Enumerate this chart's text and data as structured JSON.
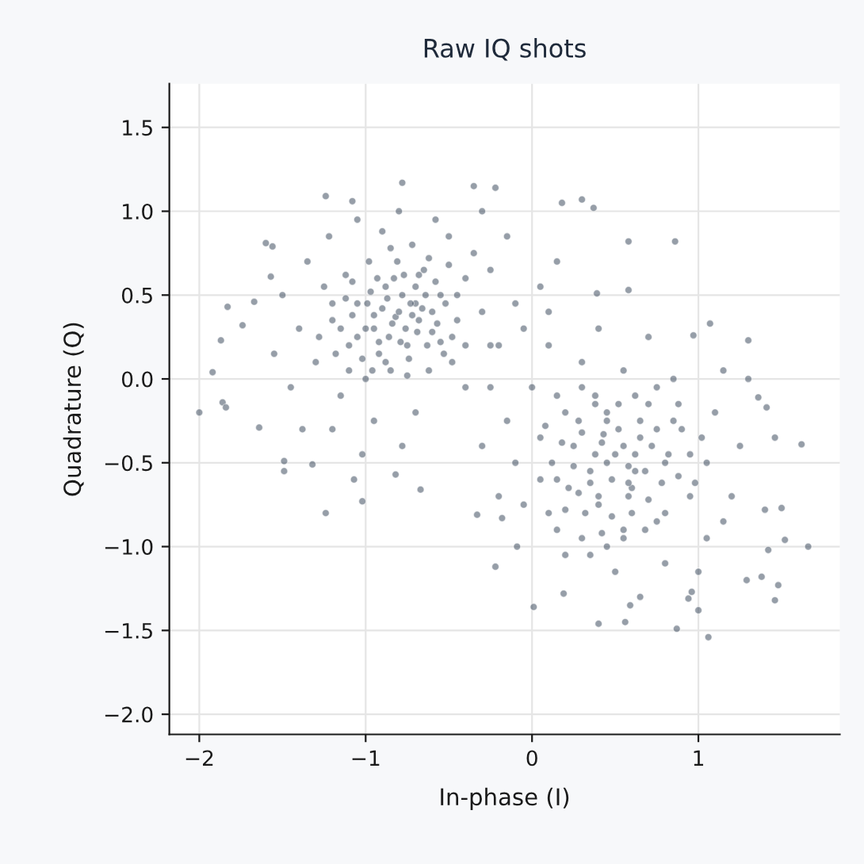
{
  "chart_data": {
    "type": "scatter",
    "title": "Raw IQ shots",
    "xlabel": "In-phase (I)",
    "ylabel": "Quadrature (Q)",
    "xlim": [
      -2.18,
      1.85
    ],
    "ylim": [
      -2.12,
      1.76
    ],
    "xticks": [
      {
        "value": -2,
        "label": "−2"
      },
      {
        "value": -1,
        "label": "−1"
      },
      {
        "value": 0,
        "label": "0"
      },
      {
        "value": 1,
        "label": "1"
      }
    ],
    "yticks": [
      {
        "value": -2.0,
        "label": "−2.0"
      },
      {
        "value": -1.5,
        "label": "−1.5"
      },
      {
        "value": -1.0,
        "label": "−1.0"
      },
      {
        "value": -0.5,
        "label": "−0.5"
      },
      {
        "value": 0.0,
        "label": "0.0"
      },
      {
        "value": 0.5,
        "label": "0.5"
      },
      {
        "value": 1.0,
        "label": "1.0"
      },
      {
        "value": 1.5,
        "label": "1.5"
      }
    ],
    "grid": true,
    "marker": "circle",
    "series": [
      {
        "color": "#2e3d52",
        "x": [
          -2.0,
          -1.92,
          -1.87,
          -1.83,
          -1.86,
          -1.84,
          -1.74,
          -1.6,
          -1.56,
          -1.24,
          -1.08,
          -0.78,
          -0.35,
          -0.22,
          -1.24,
          -1.02,
          -1.07,
          -1.49,
          -1.49,
          -1.32,
          -0.67,
          -0.82,
          -1.67,
          -1.57,
          -1.64,
          0.18,
          0.3,
          0.37,
          0.58,
          0.86,
          1.07,
          1.3,
          1.3,
          1.62,
          1.66,
          1.46,
          1.52,
          1.48,
          1.46,
          1.06,
          0.87,
          0.59,
          0.4,
          0.56,
          0.19,
          0.01,
          -0.22,
          -0.09,
          -0.18,
          -0.33,
          1.0,
          0.94,
          0.96,
          1.29,
          1.38,
          1.42,
          1.4,
          1.5,
          1.36,
          1.41,
          0.58,
          0.97,
          0.39,
          -0.82,
          -0.95,
          -0.7,
          -0.6,
          -1.05,
          -0.88,
          -0.75,
          -1.1,
          -0.55,
          -0.65,
          -0.98,
          -1.2,
          -1.25,
          -0.45,
          -0.4,
          -0.85,
          -1.0,
          -0.62,
          -1.3,
          -1.15,
          -0.72,
          -0.9,
          -0.5,
          -0.35,
          -1.35,
          -1.4,
          -1.45,
          -1.2,
          -0.95,
          -0.7,
          -0.48,
          -0.3,
          -0.25,
          -0.58,
          -0.8,
          -1.05,
          -1.22,
          -1.5,
          -1.55,
          -1.38,
          -0.4,
          -0.2,
          -0.15,
          -0.3,
          -1.02,
          -0.78,
          -1.12,
          -0.68,
          -0.92,
          -0.55,
          -0.8,
          -0.84,
          -0.76,
          -0.9,
          -0.72,
          -0.86,
          -0.78,
          -0.95,
          -0.66,
          -0.92,
          -1.0,
          -0.7,
          -0.6,
          -1.05,
          -0.83,
          -0.97,
          -0.63,
          -0.74,
          -1.08,
          -0.88,
          -0.57,
          -1.12,
          -0.52,
          -0.68,
          -1.02,
          -0.79,
          -0.93,
          -0.64,
          -1.15,
          -0.48,
          -0.81,
          -1.08,
          -0.58,
          -0.73,
          -0.87,
          -0.99,
          -0.69,
          -0.77,
          -1.18,
          -0.53,
          -0.96,
          -0.62,
          -1.1,
          -0.45,
          -0.85,
          -1.2,
          -0.4,
          -0.75,
          -1.28,
          -0.5,
          0.5,
          0.35,
          0.65,
          0.45,
          0.6,
          0.25,
          0.8,
          0.4,
          0.7,
          0.2,
          0.15,
          0.9,
          0.95,
          0.55,
          0.3,
          0.75,
          0.05,
          0.1,
          1.05,
          1.1,
          0.85,
          0.55,
          0.3,
          0.0,
          -0.1,
          -0.15,
          -0.05,
          0.2,
          0.5,
          0.8,
          1.05,
          1.2,
          1.25,
          1.15,
          0.7,
          0.4,
          0.1,
          -0.25,
          -0.3,
          -0.2,
          0.65,
          1.0,
          0.38,
          0.62,
          0.28,
          0.85,
          0.45,
          0.15,
          1.15,
          -0.05,
          0.45,
          0.55,
          0.42,
          0.58,
          0.38,
          0.62,
          0.48,
          0.52,
          0.35,
          0.68,
          0.3,
          0.65,
          0.4,
          0.72,
          0.25,
          0.58,
          0.45,
          0.78,
          0.22,
          0.32,
          0.6,
          0.75,
          0.18,
          0.82,
          0.52,
          0.28,
          0.7,
          0.48,
          0.88,
          0.12,
          0.38,
          0.62,
          0.95,
          0.2,
          0.8,
          0.55,
          0.08,
          0.98,
          0.42,
          0.68,
          0.3,
          1.02,
          0.05,
          0.88,
          0.15,
          0.58,
          0.43,
          0.75,
          0.35,
          -0.1,
          0.05,
          0.15,
          -0.25,
          0.1
        ],
        "values": [
          -0.2,
          0.04,
          0.23,
          0.43,
          -0.14,
          -0.17,
          0.32,
          0.81,
          0.79,
          1.09,
          1.06,
          1.17,
          1.15,
          1.14,
          -0.8,
          -0.73,
          -0.6,
          -0.55,
          -0.49,
          -0.51,
          -0.66,
          -0.57,
          0.46,
          0.61,
          -0.29,
          1.05,
          1.07,
          1.02,
          0.82,
          0.82,
          0.33,
          0.23,
          0.0,
          -0.39,
          -1.0,
          -0.35,
          -0.96,
          -1.23,
          -1.32,
          -1.54,
          -1.49,
          -1.35,
          -1.46,
          -1.45,
          -1.28,
          -1.36,
          -1.12,
          -1.0,
          -0.83,
          -0.81,
          -1.38,
          -1.31,
          -1.27,
          -1.2,
          -1.18,
          -1.02,
          -0.78,
          -0.77,
          -0.11,
          -0.17,
          0.53,
          0.26,
          0.51,
          0.37,
          0.3,
          0.45,
          0.28,
          0.45,
          0.55,
          0.2,
          0.2,
          0.5,
          0.65,
          0.7,
          0.35,
          0.55,
          0.35,
          0.6,
          0.05,
          0.0,
          0.05,
          0.1,
          -0.1,
          0.8,
          0.88,
          0.85,
          0.75,
          0.7,
          0.3,
          -0.05,
          -0.3,
          -0.25,
          -0.2,
          0.1,
          0.4,
          0.65,
          0.95,
          1.0,
          0.95,
          0.85,
          0.5,
          0.15,
          -0.3,
          -0.05,
          0.2,
          0.85,
          1.0,
          -0.45,
          -0.4,
          0.62,
          0.35,
          0.15,
          0.22,
          0.4,
          0.33,
          0.3,
          0.42,
          0.38,
          0.25,
          0.5,
          0.38,
          0.42,
          0.22,
          0.3,
          0.55,
          0.4,
          0.25,
          0.6,
          0.52,
          0.2,
          0.12,
          0.38,
          0.1,
          0.33,
          0.48,
          0.45,
          0.62,
          0.12,
          0.22,
          0.6,
          0.5,
          0.3,
          0.25,
          0.7,
          0.58,
          0.58,
          0.45,
          0.48,
          0.45,
          0.28,
          0.62,
          0.15,
          0.15,
          0.05,
          0.72,
          0.05,
          0.5,
          0.78,
          0.45,
          0.2,
          0.02,
          0.25,
          0.68,
          -0.45,
          -0.55,
          -0.35,
          -0.25,
          -0.65,
          -0.4,
          -0.5,
          -0.75,
          -0.15,
          -0.2,
          -0.6,
          -0.3,
          -0.7,
          -0.9,
          -0.95,
          -0.85,
          -0.35,
          -0.8,
          -0.5,
          -0.2,
          0.0,
          0.05,
          0.1,
          -0.05,
          -0.5,
          -0.25,
          -0.75,
          -1.05,
          -1.15,
          -1.1,
          -0.95,
          -0.7,
          -0.4,
          0.05,
          0.25,
          0.3,
          0.2,
          -0.05,
          -0.4,
          -0.7,
          -1.3,
          -1.15,
          -0.1,
          -0.55,
          -0.68,
          -0.25,
          -1.0,
          -0.1,
          -0.85,
          0.3,
          -0.5,
          -0.4,
          -0.38,
          -0.52,
          -0.45,
          -0.45,
          -0.6,
          -0.3,
          -0.62,
          -0.55,
          -0.32,
          -0.25,
          -0.7,
          -0.4,
          -0.52,
          -0.7,
          -0.2,
          -0.62,
          -0.65,
          -0.8,
          -0.8,
          -0.3,
          -0.38,
          -0.45,
          -0.15,
          -0.25,
          -0.72,
          -0.82,
          -0.58,
          -0.5,
          -0.15,
          -0.1,
          -0.45,
          -0.78,
          -0.8,
          -0.95,
          -0.28,
          -0.62,
          -0.92,
          -0.9,
          -0.05,
          -0.35,
          -0.6,
          -0.15,
          -0.9,
          -0.62,
          -0.33,
          -0.05,
          -1.05,
          0.45,
          0.55,
          0.7,
          0.2,
          0.4
        ]
      }
    ]
  }
}
